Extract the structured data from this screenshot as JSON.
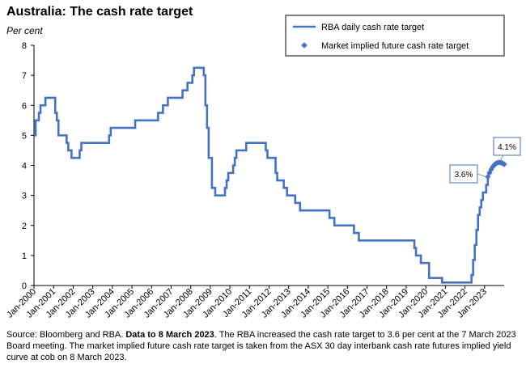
{
  "title": "Australia: The cash rate target",
  "subtitle": "Per cent",
  "source": {
    "prefix": "Source: Bloomberg and RBA. ",
    "bold": "Data to 8 March 2023",
    "suffix": ". The RBA increased the cash rate target to 3.6 per cent at the 7 March 2023 Board meeting. The market implied future cash rate target is taken from the ASX 30 day interbank cash rate futures implied yield curve at cob on 8 March 2023."
  },
  "colors": {
    "series": "#4472C4",
    "axis": "#000000",
    "callout_border": "#4472C4"
  },
  "chart_data": {
    "type": "line",
    "ylim": [
      0,
      8
    ],
    "yticks": [
      0,
      1,
      2,
      3,
      4,
      5,
      6,
      7,
      8
    ],
    "xlim": [
      "2000-01",
      "2024-01"
    ],
    "xticks": [
      "Jan-2000",
      "Jan-2001",
      "Jan-2002",
      "Jan-2003",
      "Jan-2004",
      "Jan-2005",
      "Jan-2006",
      "Jan-2007",
      "Jan-2008",
      "Jan-2009",
      "Jan-2010",
      "Jan-2011",
      "Jan-2012",
      "Jan-2013",
      "Jan-2014",
      "Jan-2015",
      "Jan-2016",
      "Jan-2017",
      "Jan-2018",
      "Jan-2019",
      "Jan-2020",
      "Jan-2021",
      "Jan-2022",
      "Jan-2023"
    ],
    "grid": false,
    "legend_position": "top-right",
    "series": [
      {
        "name": "RBA daily cash rate target",
        "style": "step-line",
        "points": [
          [
            "2000-01",
            5.0
          ],
          [
            "2000-02",
            5.5
          ],
          [
            "2000-04",
            5.75
          ],
          [
            "2000-05",
            6.0
          ],
          [
            "2000-08",
            6.25
          ],
          [
            "2001-02",
            5.75
          ],
          [
            "2001-03",
            5.5
          ],
          [
            "2001-04",
            5.0
          ],
          [
            "2001-09",
            4.75
          ],
          [
            "2001-10",
            4.5
          ],
          [
            "2001-12",
            4.25
          ],
          [
            "2002-05",
            4.5
          ],
          [
            "2002-06",
            4.75
          ],
          [
            "2003-11",
            5.0
          ],
          [
            "2003-12",
            5.25
          ],
          [
            "2005-03",
            5.5
          ],
          [
            "2006-05",
            5.75
          ],
          [
            "2006-08",
            6.0
          ],
          [
            "2006-11",
            6.25
          ],
          [
            "2007-08",
            6.5
          ],
          [
            "2007-11",
            6.75
          ],
          [
            "2008-02",
            7.0
          ],
          [
            "2008-03",
            7.25
          ],
          [
            "2008-09",
            7.0
          ],
          [
            "2008-10",
            6.0
          ],
          [
            "2008-11",
            5.25
          ],
          [
            "2008-12",
            4.25
          ],
          [
            "2009-02",
            3.25
          ],
          [
            "2009-04",
            3.0
          ],
          [
            "2009-10",
            3.25
          ],
          [
            "2009-11",
            3.5
          ],
          [
            "2009-12",
            3.75
          ],
          [
            "2010-03",
            4.0
          ],
          [
            "2010-04",
            4.25
          ],
          [
            "2010-05",
            4.5
          ],
          [
            "2010-11",
            4.75
          ],
          [
            "2011-11",
            4.5
          ],
          [
            "2011-12",
            4.25
          ],
          [
            "2012-05",
            3.75
          ],
          [
            "2012-06",
            3.5
          ],
          [
            "2012-10",
            3.25
          ],
          [
            "2012-12",
            3.0
          ],
          [
            "2013-05",
            2.75
          ],
          [
            "2013-08",
            2.5
          ],
          [
            "2015-02",
            2.25
          ],
          [
            "2015-05",
            2.0
          ],
          [
            "2016-05",
            1.75
          ],
          [
            "2016-08",
            1.5
          ],
          [
            "2019-06",
            1.25
          ],
          [
            "2019-07",
            1.0
          ],
          [
            "2019-10",
            0.75
          ],
          [
            "2020-03",
            0.5
          ],
          [
            "2020-03",
            0.25
          ],
          [
            "2020-11",
            0.1
          ],
          [
            "2022-05",
            0.35
          ],
          [
            "2022-06",
            0.85
          ],
          [
            "2022-07",
            1.35
          ],
          [
            "2022-08",
            1.85
          ],
          [
            "2022-09",
            2.35
          ],
          [
            "2022-10",
            2.6
          ],
          [
            "2022-11",
            2.85
          ],
          [
            "2022-12",
            3.1
          ],
          [
            "2023-02",
            3.35
          ],
          [
            "2023-03",
            3.6
          ]
        ]
      },
      {
        "name": "Market implied future cash rate target",
        "style": "diamond-markers",
        "points": [
          [
            "2023-03",
            3.62
          ],
          [
            "2023-04",
            3.75
          ],
          [
            "2023-05",
            3.86
          ],
          [
            "2023-06",
            3.95
          ],
          [
            "2023-07",
            4.02
          ],
          [
            "2023-08",
            4.06
          ],
          [
            "2023-09",
            4.09
          ],
          [
            "2023-10",
            4.1
          ],
          [
            "2023-11",
            4.09
          ],
          [
            "2023-12",
            4.07
          ],
          [
            "2024-01",
            4.04
          ]
        ]
      }
    ],
    "annotations": [
      {
        "text": "3.6%",
        "points_to": [
          "2023-03",
          3.6
        ]
      },
      {
        "text": "4.1%",
        "points_to": [
          "2023-10",
          4.1
        ]
      }
    ]
  }
}
